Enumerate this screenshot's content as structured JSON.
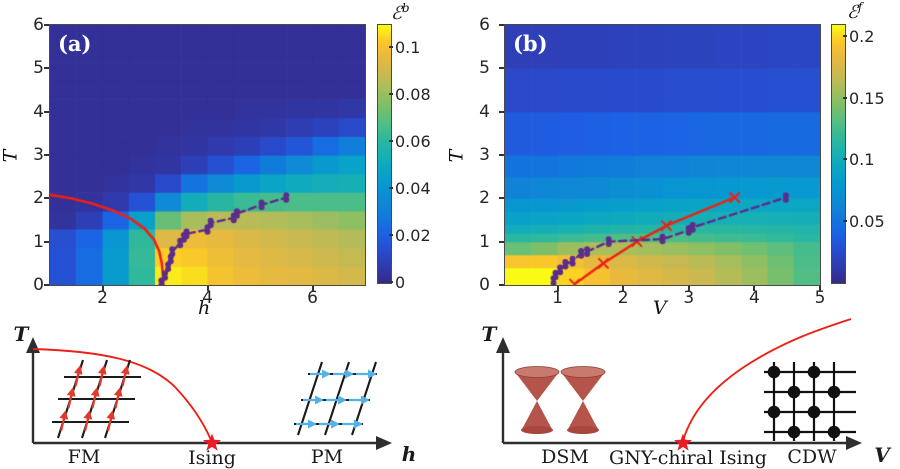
{
  "colors": {
    "transition_red": "#ee2015",
    "crossover_purple": "#5c2d8c",
    "star_red": "#ed1c24",
    "spin_arrow_red": "#e03a2c",
    "spin_arrow_blue": "#55b2e8",
    "cone_body": "#b5544a",
    "cone_rim": "#c97a6f",
    "heat_dark_blue": "#352a87",
    "heat_yellow": "#f9fb14"
  },
  "chart_data": [
    {
      "type": "heatmap",
      "panel_label": "(a)",
      "xlabel": "h",
      "ylabel": "T",
      "xlim": [
        1,
        7
      ],
      "ylim": [
        0,
        6
      ],
      "xticks": [
        2,
        4,
        6
      ],
      "yticks": [
        0,
        1,
        2,
        3,
        4,
        5,
        6
      ],
      "vmin": 0,
      "vmax": 0.11,
      "colorbar": {
        "script": "ℰ",
        "sup": "b",
        "ticks": [
          "0",
          "0.02",
          "0.04",
          "0.06",
          "0.08",
          "0.1"
        ]
      },
      "heatmap": {
        "x_edges": [
          1,
          1.5,
          2,
          2.5,
          3,
          3.5,
          4,
          4.5,
          5,
          5.5,
          6,
          6.5,
          7
        ],
        "y_edges": [
          0,
          0.43,
          0.86,
          1.29,
          1.71,
          2.14,
          2.57,
          3.0,
          3.43,
          3.86,
          4.29,
          4.71,
          5.14,
          5.57,
          6.0
        ],
        "values": [
          [
            0.016,
            0.024,
            0.044,
            0.062,
            0.108,
            0.106,
            0.101,
            0.098,
            0.096,
            0.095,
            0.093,
            0.091
          ],
          [
            0.016,
            0.024,
            0.044,
            0.063,
            0.104,
            0.103,
            0.099,
            0.096,
            0.094,
            0.092,
            0.09,
            0.088
          ],
          [
            0.015,
            0.022,
            0.04,
            0.062,
            0.094,
            0.098,
            0.096,
            0.093,
            0.091,
            0.089,
            0.087,
            0.085
          ],
          [
            0.004,
            0.009,
            0.022,
            0.046,
            0.072,
            0.083,
            0.086,
            0.086,
            0.085,
            0.083,
            0.081,
            0.079
          ],
          [
            0.003,
            0.004,
            0.007,
            0.016,
            0.036,
            0.052,
            0.06,
            0.064,
            0.066,
            0.067,
            0.067,
            0.067
          ],
          [
            0.003,
            0.003,
            0.004,
            0.006,
            0.013,
            0.026,
            0.036,
            0.043,
            0.048,
            0.051,
            0.053,
            0.054
          ],
          [
            0.003,
            0.003,
            0.003,
            0.004,
            0.005,
            0.009,
            0.015,
            0.022,
            0.029,
            0.036,
            0.043,
            0.047
          ],
          [
            0.003,
            0.003,
            0.003,
            0.003,
            0.004,
            0.005,
            0.007,
            0.009,
            0.013,
            0.017,
            0.024,
            0.03
          ],
          [
            0.003,
            0.003,
            0.003,
            0.003,
            0.003,
            0.004,
            0.004,
            0.005,
            0.006,
            0.008,
            0.01,
            0.013
          ],
          [
            0.003,
            0.003,
            0.003,
            0.003,
            0.003,
            0.003,
            0.003,
            0.004,
            0.004,
            0.005,
            0.005,
            0.006
          ],
          [
            0.003,
            0.003,
            0.003,
            0.003,
            0.003,
            0.003,
            0.003,
            0.003,
            0.003,
            0.003,
            0.003,
            0.003
          ],
          [
            0.003,
            0.003,
            0.003,
            0.003,
            0.003,
            0.003,
            0.003,
            0.003,
            0.003,
            0.003,
            0.003,
            0.003
          ],
          [
            0.003,
            0.003,
            0.003,
            0.003,
            0.003,
            0.003,
            0.003,
            0.003,
            0.003,
            0.003,
            0.003,
            0.003
          ],
          [
            0.003,
            0.003,
            0.003,
            0.003,
            0.003,
            0.003,
            0.003,
            0.003,
            0.003,
            0.003,
            0.003,
            0.003
          ]
        ]
      },
      "overlays": [
        {
          "name": "ising-transition-line",
          "type": "line",
          "style": "solid",
          "marker": "none",
          "color": "#ee2015",
          "width": 2.6,
          "points": [
            [
              1.0,
              2.08
            ],
            [
              1.4,
              2.0
            ],
            [
              1.8,
              1.88
            ],
            [
              2.2,
              1.72
            ],
            [
              2.55,
              1.52
            ],
            [
              2.8,
              1.3
            ],
            [
              2.98,
              1.05
            ],
            [
              3.08,
              0.78
            ],
            [
              3.13,
              0.5
            ],
            [
              3.15,
              0.25
            ],
            [
              3.16,
              0.0
            ]
          ]
        },
        {
          "name": "entanglement-crossover-line",
          "type": "line",
          "style": "dashed",
          "marker": "dot-pair",
          "color": "#5c2d8c",
          "width": 2.4,
          "points": [
            [
              3.12,
              0.05
            ],
            [
              3.19,
              0.22
            ],
            [
              3.25,
              0.42
            ],
            [
              3.3,
              0.6
            ],
            [
              3.33,
              0.77
            ],
            [
              3.48,
              0.97
            ],
            [
              3.55,
              1.1
            ],
            [
              3.6,
              1.18
            ],
            [
              4.0,
              1.28
            ],
            [
              4.06,
              1.43
            ],
            [
              4.5,
              1.55
            ],
            [
              4.56,
              1.65
            ],
            [
              5.03,
              1.85
            ],
            [
              5.5,
              2.02
            ]
          ]
        }
      ]
    },
    {
      "type": "heatmap",
      "panel_label": "(b)",
      "xlabel": "V",
      "ylabel": "T",
      "xlim": [
        0.2,
        5
      ],
      "ylim": [
        0,
        6
      ],
      "xticks": [
        1,
        2,
        3,
        4,
        5
      ],
      "yticks": [
        0,
        1,
        2,
        3,
        4,
        5,
        6
      ],
      "vmin": 0,
      "vmax": 0.21,
      "colorbar": {
        "script": "ℰ",
        "sup": "f",
        "ticks": [
          "0.05",
          "0.1",
          "0.15",
          "0.2"
        ]
      },
      "heatmap": {
        "x_edges": [
          0.2,
          0.6,
          1.0,
          1.4,
          1.8,
          2.2,
          2.6,
          3.0,
          3.4,
          3.8,
          4.2,
          4.6,
          5.0
        ],
        "y_edges": [
          0,
          0.4,
          0.7,
          1.0,
          1.2,
          1.4,
          1.7,
          2.0,
          2.5,
          3.0,
          4.0,
          5.0,
          6.0
        ],
        "values": [
          [
            0.215,
            0.21,
            0.2,
            0.192,
            0.185,
            0.18,
            0.175,
            0.17,
            0.163,
            0.155,
            0.143,
            0.13
          ],
          [
            0.195,
            0.196,
            0.19,
            0.183,
            0.178,
            0.173,
            0.169,
            0.164,
            0.158,
            0.151,
            0.14,
            0.128
          ],
          [
            0.138,
            0.145,
            0.155,
            0.16,
            0.16,
            0.157,
            0.154,
            0.15,
            0.146,
            0.141,
            0.134,
            0.126
          ],
          [
            0.115,
            0.118,
            0.122,
            0.126,
            0.129,
            0.129,
            0.128,
            0.126,
            0.124,
            0.122,
            0.119,
            0.116
          ],
          [
            0.1,
            0.102,
            0.105,
            0.108,
            0.111,
            0.113,
            0.114,
            0.115,
            0.115,
            0.114,
            0.112,
            0.11
          ],
          [
            0.088,
            0.09,
            0.092,
            0.095,
            0.097,
            0.099,
            0.101,
            0.103,
            0.104,
            0.104,
            0.103,
            0.102
          ],
          [
            0.078,
            0.08,
            0.082,
            0.084,
            0.086,
            0.088,
            0.09,
            0.092,
            0.093,
            0.094,
            0.094,
            0.093
          ],
          [
            0.062,
            0.064,
            0.066,
            0.068,
            0.071,
            0.073,
            0.076,
            0.078,
            0.08,
            0.081,
            0.082,
            0.081
          ],
          [
            0.05,
            0.051,
            0.053,
            0.055,
            0.057,
            0.059,
            0.061,
            0.063,
            0.064,
            0.065,
            0.065,
            0.065
          ],
          [
            0.036,
            0.037,
            0.038,
            0.039,
            0.04,
            0.041,
            0.042,
            0.043,
            0.044,
            0.044,
            0.045,
            0.045
          ],
          [
            0.024,
            0.024,
            0.025,
            0.025,
            0.026,
            0.026,
            0.027,
            0.027,
            0.028,
            0.028,
            0.029,
            0.029
          ],
          [
            0.017,
            0.017,
            0.018,
            0.018,
            0.019,
            0.019,
            0.02,
            0.02,
            0.021,
            0.021,
            0.022,
            0.022
          ]
        ]
      },
      "overlays": [
        {
          "name": "cdw-transition-line",
          "type": "line",
          "style": "solid",
          "marker": "x",
          "color": "#ee2015",
          "width": 2.4,
          "points": [
            [
              1.26,
              0.02
            ],
            [
              1.7,
              0.5
            ],
            [
              2.21,
              1.0
            ],
            [
              2.66,
              1.37
            ],
            [
              3.7,
              2.02
            ]
          ]
        },
        {
          "name": "entanglement-crossover-line",
          "type": "line",
          "style": "dashed",
          "marker": "dot-pair",
          "color": "#5c2d8c",
          "width": 2.4,
          "points": [
            [
              0.94,
              0.1
            ],
            [
              0.97,
              0.23
            ],
            [
              1.04,
              0.35
            ],
            [
              1.12,
              0.48
            ],
            [
              1.23,
              0.55
            ],
            [
              1.36,
              0.73
            ],
            [
              1.45,
              0.77
            ],
            [
              1.78,
              1.0
            ],
            [
              2.6,
              1.06
            ],
            [
              3.0,
              1.26
            ],
            [
              3.06,
              1.33
            ],
            [
              4.48,
              2.02
            ]
          ]
        }
      ]
    }
  ],
  "schematics": {
    "left": {
      "ylabel": "T",
      "xlabel": "h",
      "phase_left": "FM",
      "critical_point": "Ising",
      "phase_right": "PM"
    },
    "right": {
      "ylabel": "T",
      "xlabel": "V",
      "phase_left": "DSM",
      "critical_point": "GNY-chiral Ising",
      "phase_right": "CDW"
    }
  }
}
